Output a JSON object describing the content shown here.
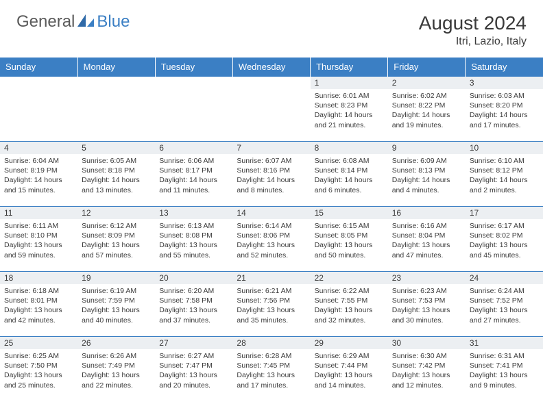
{
  "logo": {
    "general": "General",
    "blue": "Blue"
  },
  "title": "August 2024",
  "location": "Itri, Lazio, Italy",
  "colors": {
    "header_bg": "#3b7fc4",
    "header_text": "#ffffff",
    "daynum_bg": "#eceff2",
    "border": "#3b7fc4",
    "text": "#3a3a3a"
  },
  "dayHeaders": [
    "Sunday",
    "Monday",
    "Tuesday",
    "Wednesday",
    "Thursday",
    "Friday",
    "Saturday"
  ],
  "weeks": [
    [
      null,
      null,
      null,
      null,
      {
        "n": "1",
        "sr": "6:01 AM",
        "ss": "8:23 PM",
        "dl": "14 hours and 21 minutes."
      },
      {
        "n": "2",
        "sr": "6:02 AM",
        "ss": "8:22 PM",
        "dl": "14 hours and 19 minutes."
      },
      {
        "n": "3",
        "sr": "6:03 AM",
        "ss": "8:20 PM",
        "dl": "14 hours and 17 minutes."
      }
    ],
    [
      {
        "n": "4",
        "sr": "6:04 AM",
        "ss": "8:19 PM",
        "dl": "14 hours and 15 minutes."
      },
      {
        "n": "5",
        "sr": "6:05 AM",
        "ss": "8:18 PM",
        "dl": "14 hours and 13 minutes."
      },
      {
        "n": "6",
        "sr": "6:06 AM",
        "ss": "8:17 PM",
        "dl": "14 hours and 11 minutes."
      },
      {
        "n": "7",
        "sr": "6:07 AM",
        "ss": "8:16 PM",
        "dl": "14 hours and 8 minutes."
      },
      {
        "n": "8",
        "sr": "6:08 AM",
        "ss": "8:14 PM",
        "dl": "14 hours and 6 minutes."
      },
      {
        "n": "9",
        "sr": "6:09 AM",
        "ss": "8:13 PM",
        "dl": "14 hours and 4 minutes."
      },
      {
        "n": "10",
        "sr": "6:10 AM",
        "ss": "8:12 PM",
        "dl": "14 hours and 2 minutes."
      }
    ],
    [
      {
        "n": "11",
        "sr": "6:11 AM",
        "ss": "8:10 PM",
        "dl": "13 hours and 59 minutes."
      },
      {
        "n": "12",
        "sr": "6:12 AM",
        "ss": "8:09 PM",
        "dl": "13 hours and 57 minutes."
      },
      {
        "n": "13",
        "sr": "6:13 AM",
        "ss": "8:08 PM",
        "dl": "13 hours and 55 minutes."
      },
      {
        "n": "14",
        "sr": "6:14 AM",
        "ss": "8:06 PM",
        "dl": "13 hours and 52 minutes."
      },
      {
        "n": "15",
        "sr": "6:15 AM",
        "ss": "8:05 PM",
        "dl": "13 hours and 50 minutes."
      },
      {
        "n": "16",
        "sr": "6:16 AM",
        "ss": "8:04 PM",
        "dl": "13 hours and 47 minutes."
      },
      {
        "n": "17",
        "sr": "6:17 AM",
        "ss": "8:02 PM",
        "dl": "13 hours and 45 minutes."
      }
    ],
    [
      {
        "n": "18",
        "sr": "6:18 AM",
        "ss": "8:01 PM",
        "dl": "13 hours and 42 minutes."
      },
      {
        "n": "19",
        "sr": "6:19 AM",
        "ss": "7:59 PM",
        "dl": "13 hours and 40 minutes."
      },
      {
        "n": "20",
        "sr": "6:20 AM",
        "ss": "7:58 PM",
        "dl": "13 hours and 37 minutes."
      },
      {
        "n": "21",
        "sr": "6:21 AM",
        "ss": "7:56 PM",
        "dl": "13 hours and 35 minutes."
      },
      {
        "n": "22",
        "sr": "6:22 AM",
        "ss": "7:55 PM",
        "dl": "13 hours and 32 minutes."
      },
      {
        "n": "23",
        "sr": "6:23 AM",
        "ss": "7:53 PM",
        "dl": "13 hours and 30 minutes."
      },
      {
        "n": "24",
        "sr": "6:24 AM",
        "ss": "7:52 PM",
        "dl": "13 hours and 27 minutes."
      }
    ],
    [
      {
        "n": "25",
        "sr": "6:25 AM",
        "ss": "7:50 PM",
        "dl": "13 hours and 25 minutes."
      },
      {
        "n": "26",
        "sr": "6:26 AM",
        "ss": "7:49 PM",
        "dl": "13 hours and 22 minutes."
      },
      {
        "n": "27",
        "sr": "6:27 AM",
        "ss": "7:47 PM",
        "dl": "13 hours and 20 minutes."
      },
      {
        "n": "28",
        "sr": "6:28 AM",
        "ss": "7:45 PM",
        "dl": "13 hours and 17 minutes."
      },
      {
        "n": "29",
        "sr": "6:29 AM",
        "ss": "7:44 PM",
        "dl": "13 hours and 14 minutes."
      },
      {
        "n": "30",
        "sr": "6:30 AM",
        "ss": "7:42 PM",
        "dl": "13 hours and 12 minutes."
      },
      {
        "n": "31",
        "sr": "6:31 AM",
        "ss": "7:41 PM",
        "dl": "13 hours and 9 minutes."
      }
    ]
  ],
  "labels": {
    "sunrise": "Sunrise:",
    "sunset": "Sunset:",
    "daylight": "Daylight:"
  }
}
